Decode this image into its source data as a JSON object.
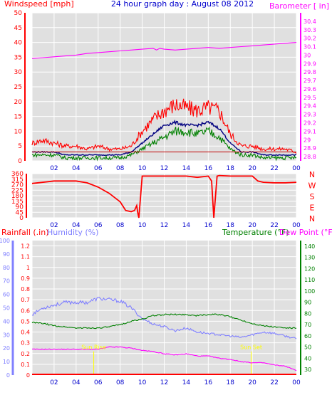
{
  "header": {
    "left_label": "Windspeed [mph]",
    "title": "24 hour graph day : August 08 2012",
    "right_label": "Barometer [ in]"
  },
  "colors": {
    "background": "#ffffff",
    "plot_bg": "#e0e0e0",
    "grid": "#ffffff",
    "axis": "#000000",
    "wind_speed": "#ff0000",
    "wind_gust": "#008000",
    "wind_avg": "#000080",
    "wind_threshold": "#c00000",
    "barometer": "#ff00ff",
    "direction": "#ff0000",
    "rain": "#ff0000",
    "humidity": "#8080ff",
    "temperature": "#008000",
    "dewpoint": "#ff00ff",
    "markers": "#ffff00",
    "title_blue": "#0000cc"
  },
  "chart_data": [
    {
      "type": "line",
      "panel": "wind-barometer",
      "x_tick_labels": [
        "02",
        "04",
        "06",
        "08",
        "10",
        "12",
        "14",
        "16",
        "18",
        "20",
        "22",
        "00"
      ],
      "ylabel_left": "Windspeed [mph]",
      "ylim_left": [
        0,
        50
      ],
      "yticks_left": [
        0,
        5,
        10,
        15,
        20,
        25,
        30,
        35,
        40,
        45,
        50
      ],
      "ylabel_right": "Barometer [ in]",
      "ylim_right": [
        28.75,
        30.5
      ],
      "yticks_right": [
        "28.8",
        "28.9",
        "29",
        "29.1",
        "29.2",
        "29.3",
        "29.4",
        "29.5",
        "29.6",
        "29.7",
        "29.8",
        "29.9",
        "30",
        "30.1",
        "30.2",
        "30.3",
        "30.4"
      ],
      "series": [
        {
          "color_key": "barometer",
          "axis": "right",
          "x": [
            0,
            1,
            2,
            3,
            4,
            5,
            6,
            7,
            8,
            9,
            10,
            11,
            11.3,
            11.6,
            12,
            13,
            14,
            15,
            16,
            17,
            18,
            19,
            20,
            21,
            22,
            23,
            24
          ],
          "values": [
            29.96,
            29.97,
            29.98,
            29.99,
            30.0,
            30.02,
            30.03,
            30.04,
            30.05,
            30.06,
            30.07,
            30.08,
            30.06,
            30.08,
            30.07,
            30.06,
            30.07,
            30.08,
            30.09,
            30.08,
            30.09,
            30.1,
            30.11,
            30.12,
            30.13,
            30.14,
            30.15
          ]
        },
        {
          "color_key": "wind_speed",
          "axis": "left",
          "x": [
            0,
            1,
            2,
            3,
            4,
            5,
            6,
            7,
            8,
            9,
            10,
            11,
            12,
            13,
            14,
            15,
            16,
            17,
            18,
            19,
            20,
            21,
            22,
            23,
            24
          ],
          "values": [
            6,
            7,
            6,
            5,
            5,
            4,
            5,
            4,
            4,
            5,
            10,
            14,
            17,
            19,
            18,
            17,
            18,
            17,
            9,
            5,
            5,
            4,
            4,
            4,
            3
          ]
        },
        {
          "color_key": "wind_avg",
          "axis": "left",
          "x": [
            0,
            1,
            2,
            3,
            4,
            5,
            6,
            7,
            8,
            9,
            10,
            11,
            12,
            13,
            14,
            15,
            16,
            17,
            18,
            19,
            20,
            21,
            22,
            23,
            24
          ],
          "values": [
            3,
            3,
            3,
            2,
            2,
            2,
            2,
            2,
            2,
            3,
            6,
            9,
            12,
            13,
            12,
            12,
            13,
            11,
            6,
            3,
            3,
            2,
            2,
            2,
            2
          ]
        },
        {
          "color_key": "wind_gust",
          "axis": "left",
          "x": [
            0,
            1,
            2,
            3,
            4,
            5,
            6,
            7,
            8,
            9,
            10,
            11,
            12,
            13,
            14,
            15,
            16,
            17,
            18,
            19,
            20,
            21,
            22,
            23,
            24
          ],
          "values": [
            2,
            2,
            2,
            1,
            1,
            1,
            1,
            1,
            1,
            2,
            4,
            6,
            8,
            10,
            10,
            9,
            10,
            8,
            4,
            2,
            2,
            1,
            1,
            1,
            1
          ]
        },
        {
          "color_key": "wind_threshold",
          "axis": "left",
          "x": [
            0,
            24
          ],
          "values": [
            3,
            3
          ]
        }
      ]
    },
    {
      "type": "line",
      "panel": "wind-direction",
      "x_tick_labels": [
        "02",
        "04",
        "06",
        "08",
        "10",
        "12",
        "14",
        "16",
        "18",
        "20",
        "22",
        "00"
      ],
      "yticks_left": [
        "0",
        "45",
        "90",
        "135",
        "180",
        "225",
        "270",
        "315",
        "360"
      ],
      "ylim_left": [
        0,
        360
      ],
      "yticks_right": [
        "N",
        "E",
        "S",
        "W",
        "N"
      ],
      "series": [
        {
          "color_key": "direction",
          "x": [
            0,
            2,
            4,
            5,
            6,
            7,
            8,
            8.5,
            9,
            9.3,
            9.5,
            9.6,
            9.7,
            10,
            12,
            14,
            15,
            16,
            16.3,
            16.5,
            16.8,
            17,
            18,
            20,
            20.5,
            21,
            22,
            23,
            24
          ],
          "values": [
            280,
            300,
            300,
            285,
            250,
            200,
            130,
            60,
            50,
            60,
            100,
            40,
            0,
            340,
            340,
            340,
            330,
            340,
            300,
            0,
            340,
            345,
            340,
            340,
            300,
            290,
            285,
            285,
            290
          ]
        }
      ]
    },
    {
      "type": "line",
      "panel": "rain-humidity-temperature",
      "x_tick_labels": [
        "02",
        "04",
        "06",
        "08",
        "10",
        "12",
        "14",
        "16",
        "18",
        "20",
        "22",
        "00"
      ],
      "ylabel_rain": "Rainfall (.in)",
      "yticks_rain": [
        "0",
        "0.1",
        "0.2",
        "0.3",
        "0.4",
        "0.5",
        "0.6",
        "0.7",
        "0.8",
        "0.9",
        "1",
        "1.1",
        "1.2"
      ],
      "ylim_rain": [
        0,
        1.25
      ],
      "ylabel_humidity": "Humidity (%)",
      "yticks_humidity": [
        "0",
        "10",
        "20",
        "30",
        "40",
        "50",
        "60",
        "70",
        "80",
        "90",
        "100"
      ],
      "ylim_humidity": [
        0,
        100
      ],
      "ylabel_temperature": "Temperature (°F)",
      "ylabel_dewpoint": "Dew Point (°F)",
      "yticks_temperature": [
        "30",
        "40",
        "50",
        "60",
        "70",
        "80",
        "90",
        "100",
        "110",
        "120",
        "130",
        "140"
      ],
      "ylim_temperature": [
        25,
        145
      ],
      "markers": [
        "Sun Rise",
        "Sun Set"
      ],
      "marker_x": [
        5.6,
        19.9
      ],
      "series": [
        {
          "color_key": "humidity",
          "axis": "humidity",
          "x": [
            0,
            1,
            2,
            3,
            4,
            5,
            6,
            7,
            8,
            9,
            10,
            11,
            12,
            13,
            14,
            15,
            16,
            17,
            18,
            19,
            20,
            21,
            22,
            23,
            24
          ],
          "values": [
            45,
            50,
            52,
            54,
            54,
            54,
            57,
            56,
            55,
            50,
            42,
            38,
            36,
            33,
            35,
            32,
            31,
            30,
            29,
            28,
            30,
            32,
            31,
            29,
            27
          ]
        },
        {
          "color_key": "temperature",
          "axis": "temperature",
          "x": [
            0,
            1,
            2,
            3,
            4,
            5,
            6,
            7,
            8,
            9,
            10,
            11,
            12,
            13,
            14,
            15,
            16,
            17,
            18,
            19,
            20,
            21,
            22,
            23,
            24
          ],
          "values": [
            72,
            71,
            69,
            68,
            67,
            67,
            67,
            68,
            70,
            73,
            75,
            78,
            79,
            79,
            79,
            78,
            79,
            79,
            77,
            74,
            71,
            69,
            68,
            67,
            67
          ]
        },
        {
          "color_key": "dewpoint",
          "axis": "temperature",
          "x": [
            0,
            1,
            2,
            3,
            4,
            5,
            6,
            7,
            8,
            9,
            10,
            11,
            12,
            13,
            14,
            15,
            16,
            17,
            18,
            19,
            20,
            21,
            22,
            23,
            24
          ],
          "values": [
            48,
            48,
            48,
            48,
            48,
            48,
            48,
            50,
            50,
            49,
            47,
            46,
            44,
            43,
            44,
            42,
            42,
            40,
            39,
            37,
            36,
            36,
            34,
            33,
            29
          ]
        },
        {
          "color_key": "rain",
          "axis": "rain",
          "x": [
            0,
            24
          ],
          "values": [
            0,
            0
          ]
        }
      ]
    }
  ]
}
